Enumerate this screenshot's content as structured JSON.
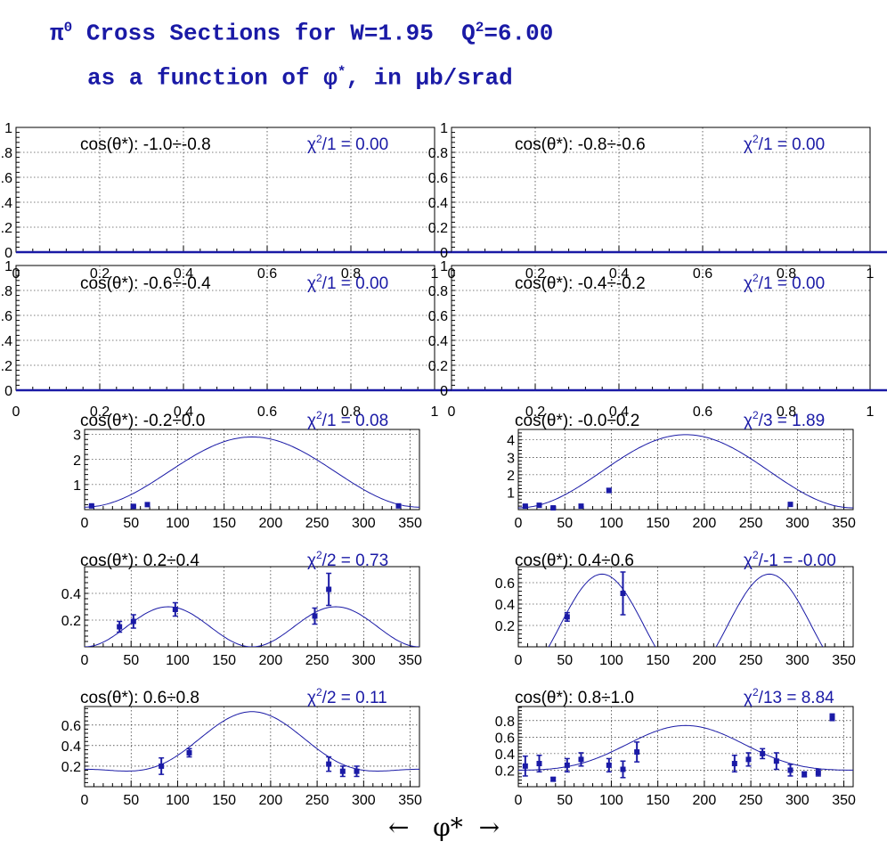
{
  "title": {
    "pi": "π",
    "pi_sup": "0",
    "line1_a": " Cross Sections for W=1.95  Q",
    "q_sup": "2",
    "line1_b": "=6.00",
    "line2_a": "as a function of φ",
    "phi_sup": "*",
    "line2_b": ", in μb/srad"
  },
  "x_axis_label": "←   φ*  →",
  "colors": {
    "title": "#1a1aa6",
    "series": "#1a1aa6",
    "axis": "#000000",
    "grid": "#000000"
  },
  "chart_data": [
    {
      "type": "scatter",
      "bin_label": "cos(θ*): -1.0÷-0.8",
      "chi2_label": "χ2/1 = 0.00",
      "xlim": [
        0,
        1
      ],
      "ylim": [
        0,
        1
      ],
      "x_ticks": [
        "0",
        "0.2",
        "0.4",
        "0.6",
        "0.8",
        "1"
      ],
      "y_ticks": [
        "0",
        "0.2",
        "0.4",
        "0.6",
        "0.8",
        "1"
      ],
      "points": [],
      "fit": "none"
    },
    {
      "type": "scatter",
      "bin_label": "cos(θ*): -0.8÷-0.6",
      "chi2_label": "χ2/1 = 0.00",
      "xlim": [
        0,
        1
      ],
      "ylim": [
        0,
        1
      ],
      "x_ticks": [
        "0",
        "0.2",
        "0.4",
        "0.6",
        "0.8",
        "1"
      ],
      "y_ticks": [
        "0",
        "0.2",
        "0.4",
        "0.6",
        "0.8",
        "1"
      ],
      "points": [],
      "fit": "none"
    },
    {
      "type": "scatter",
      "bin_label": "cos(θ*): -0.6÷-0.4",
      "chi2_label": "χ2/1 = 0.00",
      "xlim": [
        0,
        1
      ],
      "ylim": [
        0,
        1
      ],
      "x_ticks": [
        "0",
        "0.2",
        "0.4",
        "0.6",
        "0.8",
        "1"
      ],
      "y_ticks": [
        "0",
        "0.2",
        "0.4",
        "0.6",
        "0.8",
        "1"
      ],
      "points": [],
      "fit": "none"
    },
    {
      "type": "scatter",
      "bin_label": "cos(θ*): -0.4÷-0.2",
      "chi2_label": "χ2/1 = 0.00",
      "xlim": [
        0,
        1
      ],
      "ylim": [
        0,
        1
      ],
      "x_ticks": [
        "0",
        "0.2",
        "0.4",
        "0.6",
        "0.8",
        "1"
      ],
      "y_ticks": [
        "0",
        "0.2",
        "0.4",
        "0.6",
        "0.8",
        "1"
      ],
      "points": [],
      "fit": "none"
    },
    {
      "type": "scatter",
      "bin_label": "cos(θ*): -0.2÷0.0",
      "chi2_label": "χ2/1 = 0.08",
      "xlim": [
        0,
        360
      ],
      "ylim": [
        0,
        3.2
      ],
      "x_ticks": [
        "0",
        "50",
        "100",
        "150",
        "200",
        "250",
        "300",
        "350"
      ],
      "y_ticks": [
        "1",
        "2",
        "3"
      ],
      "points": [
        {
          "x": 7.5,
          "y": 0.15,
          "err": 0.03
        },
        {
          "x": 52.5,
          "y": 0.13,
          "err": 0.03
        },
        {
          "x": 67.5,
          "y": 0.2,
          "err": 0.04
        },
        {
          "x": 337.5,
          "y": 0.15,
          "err": 0.03
        }
      ],
      "fit": {
        "a": 1.5,
        "b": -1.4,
        "c": 0.0,
        "f": 1
      }
    },
    {
      "type": "scatter",
      "bin_label": "cos(θ*): -0.0÷0.2",
      "chi2_label": "χ2/3 = 1.89",
      "xlim": [
        0,
        360
      ],
      "ylim": [
        0,
        4.6
      ],
      "x_ticks": [
        "0",
        "50",
        "100",
        "150",
        "200",
        "250",
        "300",
        "350"
      ],
      "y_ticks": [
        "1",
        "2",
        "3",
        "4"
      ],
      "points": [
        {
          "x": 7.5,
          "y": 0.2,
          "err": 0.05
        },
        {
          "x": 22.5,
          "y": 0.25,
          "err": 0.05
        },
        {
          "x": 37.5,
          "y": 0.1,
          "err": 0.03
        },
        {
          "x": 67.5,
          "y": 0.2,
          "err": 0.04
        },
        {
          "x": 97.5,
          "y": 1.1,
          "err": 0.12
        },
        {
          "x": 292.5,
          "y": 0.3,
          "err": 0.05
        }
      ],
      "fit": {
        "a": 2.2,
        "b": -2.1,
        "c": 0.0,
        "f": 1
      }
    },
    {
      "type": "scatter",
      "bin_label": "cos(θ*): 0.2÷0.4",
      "chi2_label": "χ2/2 = 0.73",
      "xlim": [
        0,
        360
      ],
      "ylim": [
        0,
        0.6
      ],
      "x_ticks": [
        "0",
        "50",
        "100",
        "150",
        "200",
        "250",
        "300",
        "350"
      ],
      "y_ticks": [
        "0.2",
        "0.4"
      ],
      "points": [
        {
          "x": 37.5,
          "y": 0.15,
          "err": 0.04
        },
        {
          "x": 52.5,
          "y": 0.19,
          "err": 0.05
        },
        {
          "x": 97.5,
          "y": 0.28,
          "err": 0.05
        },
        {
          "x": 247.5,
          "y": 0.23,
          "err": 0.06
        },
        {
          "x": 262.5,
          "y": 0.43,
          "err": 0.12
        }
      ],
      "fit": {
        "a": 0.15,
        "b": 0.0,
        "c": -0.15,
        "f": 1
      }
    },
    {
      "type": "scatter",
      "bin_label": "cos(θ*): 0.4÷0.6",
      "chi2_label": "χ2/-1 = -0.00",
      "xlim": [
        0,
        360
      ],
      "ylim": [
        0,
        0.75
      ],
      "x_ticks": [
        "0",
        "50",
        "100",
        "150",
        "200",
        "250",
        "300",
        "350"
      ],
      "y_ticks": [
        "0.2",
        "0.4",
        "0.6"
      ],
      "points": [
        {
          "x": 52.5,
          "y": 0.28,
          "err": 0.04
        },
        {
          "x": 112.5,
          "y": 0.5,
          "err": 0.2
        }
      ],
      "fit": {
        "a": 0.2,
        "b": 0.0,
        "c": -0.48,
        "f": 1
      }
    },
    {
      "type": "scatter",
      "bin_label": "cos(θ*): 0.6÷0.8",
      "chi2_label": "χ2/2 = 0.11",
      "xlim": [
        0,
        360
      ],
      "ylim": [
        0,
        0.78
      ],
      "x_ticks": [
        "0",
        "50",
        "100",
        "150",
        "200",
        "250",
        "300",
        "350"
      ],
      "y_ticks": [
        "0.2",
        "0.4",
        "0.6"
      ],
      "points": [
        {
          "x": 82.5,
          "y": 0.2,
          "err": 0.08
        },
        {
          "x": 112.5,
          "y": 0.33,
          "err": 0.04
        },
        {
          "x": 262.5,
          "y": 0.22,
          "err": 0.07
        },
        {
          "x": 277.5,
          "y": 0.15,
          "err": 0.05
        },
        {
          "x": 292.5,
          "y": 0.15,
          "err": 0.05
        }
      ],
      "fit": {
        "a": 0.35,
        "b": -0.28,
        "c": 0.1,
        "f": 1
      }
    },
    {
      "type": "scatter",
      "bin_label": "cos(θ*): 0.8÷1.0",
      "chi2_label": "χ2/13 = 8.84",
      "xlim": [
        0,
        360
      ],
      "ylim": [
        0,
        0.97
      ],
      "x_ticks": [
        "0",
        "50",
        "100",
        "150",
        "200",
        "250",
        "300",
        "350"
      ],
      "y_ticks": [
        "0.2",
        "0.4",
        "0.6",
        "0.8"
      ],
      "points": [
        {
          "x": 7.5,
          "y": 0.25,
          "err": 0.12
        },
        {
          "x": 22.5,
          "y": 0.28,
          "err": 0.1
        },
        {
          "x": 37.5,
          "y": 0.09,
          "err": 0.02
        },
        {
          "x": 52.5,
          "y": 0.26,
          "err": 0.08
        },
        {
          "x": 67.5,
          "y": 0.33,
          "err": 0.08
        },
        {
          "x": 97.5,
          "y": 0.26,
          "err": 0.08
        },
        {
          "x": 112.5,
          "y": 0.21,
          "err": 0.1
        },
        {
          "x": 127.5,
          "y": 0.42,
          "err": 0.12
        },
        {
          "x": 232.5,
          "y": 0.28,
          "err": 0.1
        },
        {
          "x": 247.5,
          "y": 0.33,
          "err": 0.08
        },
        {
          "x": 262.5,
          "y": 0.4,
          "err": 0.06
        },
        {
          "x": 277.5,
          "y": 0.31,
          "err": 0.1
        },
        {
          "x": 292.5,
          "y": 0.2,
          "err": 0.07
        },
        {
          "x": 307.5,
          "y": 0.15,
          "err": 0.03
        },
        {
          "x": 322.5,
          "y": 0.17,
          "err": 0.04
        },
        {
          "x": 337.5,
          "y": 0.84,
          "err": 0.04
        }
      ],
      "fit": {
        "a": 0.42,
        "b": -0.27,
        "c": 0.05,
        "f": 1
      }
    }
  ]
}
